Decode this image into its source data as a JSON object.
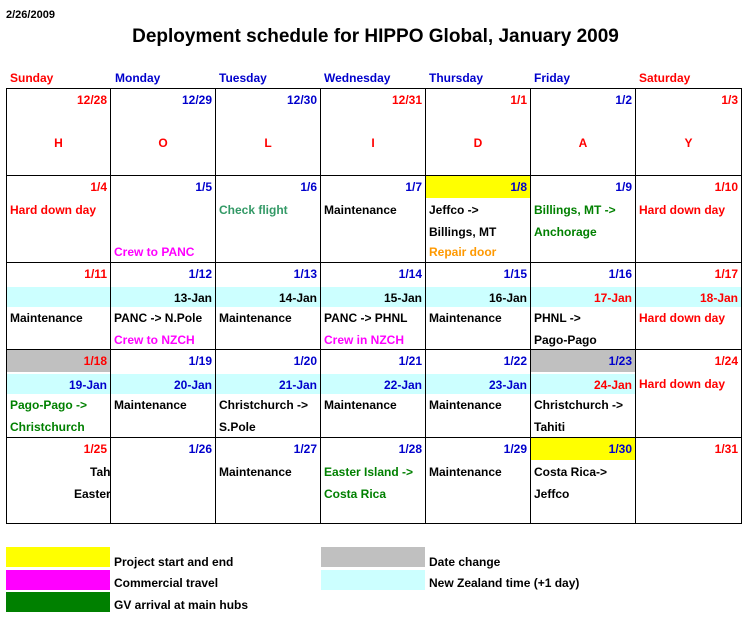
{
  "header": {
    "date": "2/26/2009",
    "title": "Deployment schedule for HIPPO Global, January 2009"
  },
  "colors": {
    "red": "#ff0000",
    "blue": "#0000cc",
    "green": "#008000",
    "teal": "#339966",
    "magenta": "#ff00ff",
    "orange": "#ff9900",
    "black": "#000000",
    "yellow": "#ffff00",
    "gray": "#c0c0c0",
    "cyan": "#ccffff"
  },
  "days_of_week": [
    {
      "label": "Sunday",
      "color": "#ff0000"
    },
    {
      "label": "Monday",
      "color": "#0000cc"
    },
    {
      "label": "Tuesday",
      "color": "#0000cc"
    },
    {
      "label": "Wednesday",
      "color": "#0000cc"
    },
    {
      "label": "Thursday",
      "color": "#0000cc"
    },
    {
      "label": "Friday",
      "color": "#0000cc"
    },
    {
      "label": "Saturday",
      "color": "#ff0000"
    }
  ],
  "weeks": [
    [
      {
        "date": "12/28",
        "date_color": "#ff0000",
        "letter": "H"
      },
      {
        "date": "12/29",
        "date_color": "#0000cc",
        "letter": "O"
      },
      {
        "date": "12/30",
        "date_color": "#0000cc",
        "letter": "L"
      },
      {
        "date": "12/31",
        "date_color": "#ff0000",
        "letter": "I"
      },
      {
        "date": "1/1",
        "date_color": "#ff0000",
        "letter": "D"
      },
      {
        "date": "1/2",
        "date_color": "#0000cc",
        "letter": "A"
      },
      {
        "date": "1/3",
        "date_color": "#ff0000",
        "letter": "Y"
      }
    ],
    [
      {
        "date": "1/4",
        "date_color": "#ff0000",
        "lines": [
          {
            "text": "Hard down day",
            "color": "#ff0000"
          }
        ],
        "bottom": {
          "text": "",
          "color": "#000000"
        }
      },
      {
        "date": "1/5",
        "date_color": "#0000cc",
        "lines": [],
        "bottom": {
          "text": "Crew to PANC",
          "color": "#ff00ff"
        }
      },
      {
        "date": "1/6",
        "date_color": "#0000cc",
        "lines": [
          {
            "text": "Check flight",
            "color": "#339966"
          }
        ],
        "bottom": {
          "text": "",
          "color": "#000000"
        }
      },
      {
        "date": "1/7",
        "date_color": "#0000cc",
        "lines": [
          {
            "text": "Maintenance",
            "color": "#000000"
          }
        ],
        "bottom": {
          "text": "",
          "color": "#000000"
        }
      },
      {
        "date": "1/8",
        "date_color": "#0000cc",
        "date_bg": "#ffff00",
        "lines": [
          {
            "text": "Jeffco ->",
            "color": "#000000"
          },
          {
            "text": "Billings, MT",
            "color": "#000000"
          }
        ],
        "bottom": {
          "text": "Repair door",
          "color": "#ff9900"
        }
      },
      {
        "date": "1/9",
        "date_color": "#0000cc",
        "lines": [
          {
            "text": "Billings, MT ->",
            "color": "#008000"
          },
          {
            "text": "Anchorage",
            "color": "#008000"
          }
        ],
        "bottom": {
          "text": "",
          "color": "#000000"
        }
      },
      {
        "date": "1/10",
        "date_color": "#ff0000",
        "lines": [
          {
            "text": "Hard down day",
            "color": "#ff0000"
          }
        ],
        "bottom": {
          "text": "",
          "color": "#000000"
        }
      }
    ],
    [
      {
        "date": "1/11",
        "date_color": "#ff0000",
        "band": "",
        "band_color": "#000000",
        "lines": [
          {
            "text": "Maintenance",
            "color": "#000000"
          }
        ]
      },
      {
        "date": "1/12",
        "date_color": "#0000cc",
        "band": "13-Jan",
        "band_color": "#000000",
        "lines": [
          {
            "text": "PANC -> N.Pole",
            "color": "#000000"
          },
          {
            "text": "Crew to NZCH",
            "color": "#ff00ff"
          }
        ]
      },
      {
        "date": "1/13",
        "date_color": "#0000cc",
        "band": "14-Jan",
        "band_color": "#000000",
        "lines": [
          {
            "text": "Maintenance",
            "color": "#000000"
          }
        ]
      },
      {
        "date": "1/14",
        "date_color": "#0000cc",
        "band": "15-Jan",
        "band_color": "#000000",
        "lines": [
          {
            "text": "PANC -> PHNL",
            "color": "#000000"
          },
          {
            "text": "Crew in NZCH",
            "color": "#ff00ff"
          }
        ]
      },
      {
        "date": "1/15",
        "date_color": "#0000cc",
        "band": "16-Jan",
        "band_color": "#000000",
        "lines": [
          {
            "text": "Maintenance",
            "color": "#000000"
          }
        ]
      },
      {
        "date": "1/16",
        "date_color": "#0000cc",
        "band": "17-Jan",
        "band_color": "#ff0000",
        "lines": [
          {
            "text": "PHNL ->",
            "color": "#000000"
          },
          {
            "text": "Pago-Pago",
            "color": "#000000"
          }
        ]
      },
      {
        "date": "1/17",
        "date_color": "#ff0000",
        "band": "18-Jan",
        "band_color": "#ff0000",
        "lines": [
          {
            "text": "Hard down day",
            "color": "#ff0000"
          }
        ]
      }
    ],
    [
      {
        "date": "1/18",
        "date_color": "#ff0000",
        "date_bg": "#c0c0c0",
        "band": "19-Jan",
        "band_color": "#0000cc",
        "lines": [
          {
            "text": "Pago-Pago ->",
            "color": "#008000"
          },
          {
            "text": "Christchurch",
            "color": "#008000"
          }
        ]
      },
      {
        "date": "1/19",
        "date_color": "#0000cc",
        "band": "20-Jan",
        "band_color": "#0000cc",
        "lines": [
          {
            "text": "Maintenance",
            "color": "#000000"
          }
        ]
      },
      {
        "date": "1/20",
        "date_color": "#0000cc",
        "band": "21-Jan",
        "band_color": "#0000cc",
        "lines": [
          {
            "text": "Christchurch ->",
            "color": "#000000"
          },
          {
            "text": "S.Pole",
            "color": "#000000"
          }
        ]
      },
      {
        "date": "1/21",
        "date_color": "#0000cc",
        "band": "22-Jan",
        "band_color": "#0000cc",
        "lines": [
          {
            "text": "Maintenance",
            "color": "#000000"
          }
        ]
      },
      {
        "date": "1/22",
        "date_color": "#0000cc",
        "band": "23-Jan",
        "band_color": "#0000cc",
        "lines": [
          {
            "text": "Maintenance",
            "color": "#000000"
          }
        ]
      },
      {
        "date": "1/23",
        "date_color": "#0000cc",
        "date_bg": "#c0c0c0",
        "band": "24-Jan",
        "band_color": "#ff0000",
        "lines": [
          {
            "text": "Christchurch ->",
            "color": "#000000"
          },
          {
            "text": "Tahiti",
            "color": "#000000"
          }
        ]
      },
      {
        "date": "1/24",
        "date_color": "#ff0000",
        "band_hidden": true,
        "lines": [
          {
            "text": "Hard down day",
            "color": "#ff0000"
          }
        ]
      }
    ],
    [
      {
        "date": "1/25",
        "date_color": "#ff0000",
        "lines": [
          {
            "text": "Tahiti ->",
            "color": "#000000",
            "indent": 80
          },
          {
            "text": "Easter Island",
            "color": "#000000",
            "indent": 64
          }
        ]
      },
      {
        "date": "1/26",
        "date_color": "#0000cc",
        "lines": []
      },
      {
        "date": "1/27",
        "date_color": "#0000cc",
        "lines": [
          {
            "text": "Maintenance",
            "color": "#000000"
          }
        ]
      },
      {
        "date": "1/28",
        "date_color": "#0000cc",
        "lines": [
          {
            "text": "Easter Island ->",
            "color": "#008000"
          },
          {
            "text": "Costa Rica",
            "color": "#008000"
          }
        ]
      },
      {
        "date": "1/29",
        "date_color": "#0000cc",
        "lines": [
          {
            "text": "Maintenance",
            "color": "#000000"
          }
        ]
      },
      {
        "date": "1/30",
        "date_color": "#0000cc",
        "date_bg": "#ffff00",
        "lines": [
          {
            "text": "Costa Rica->",
            "color": "#000000"
          },
          {
            "text": "Jeffco",
            "color": "#000000"
          }
        ]
      },
      {
        "date": "1/31",
        "date_color": "#ff0000",
        "lines": []
      }
    ]
  ],
  "legend": [
    {
      "label": "Project start and end",
      "color": "#ffff00"
    },
    {
      "label": "Commercial travel",
      "color": "#ff00ff"
    },
    {
      "label": "GV arrival at main hubs",
      "color": "#008000"
    },
    {
      "label": "Date change",
      "color": "#c0c0c0"
    },
    {
      "label": "New Zealand time (+1 day)",
      "color": "#ccffff"
    }
  ]
}
